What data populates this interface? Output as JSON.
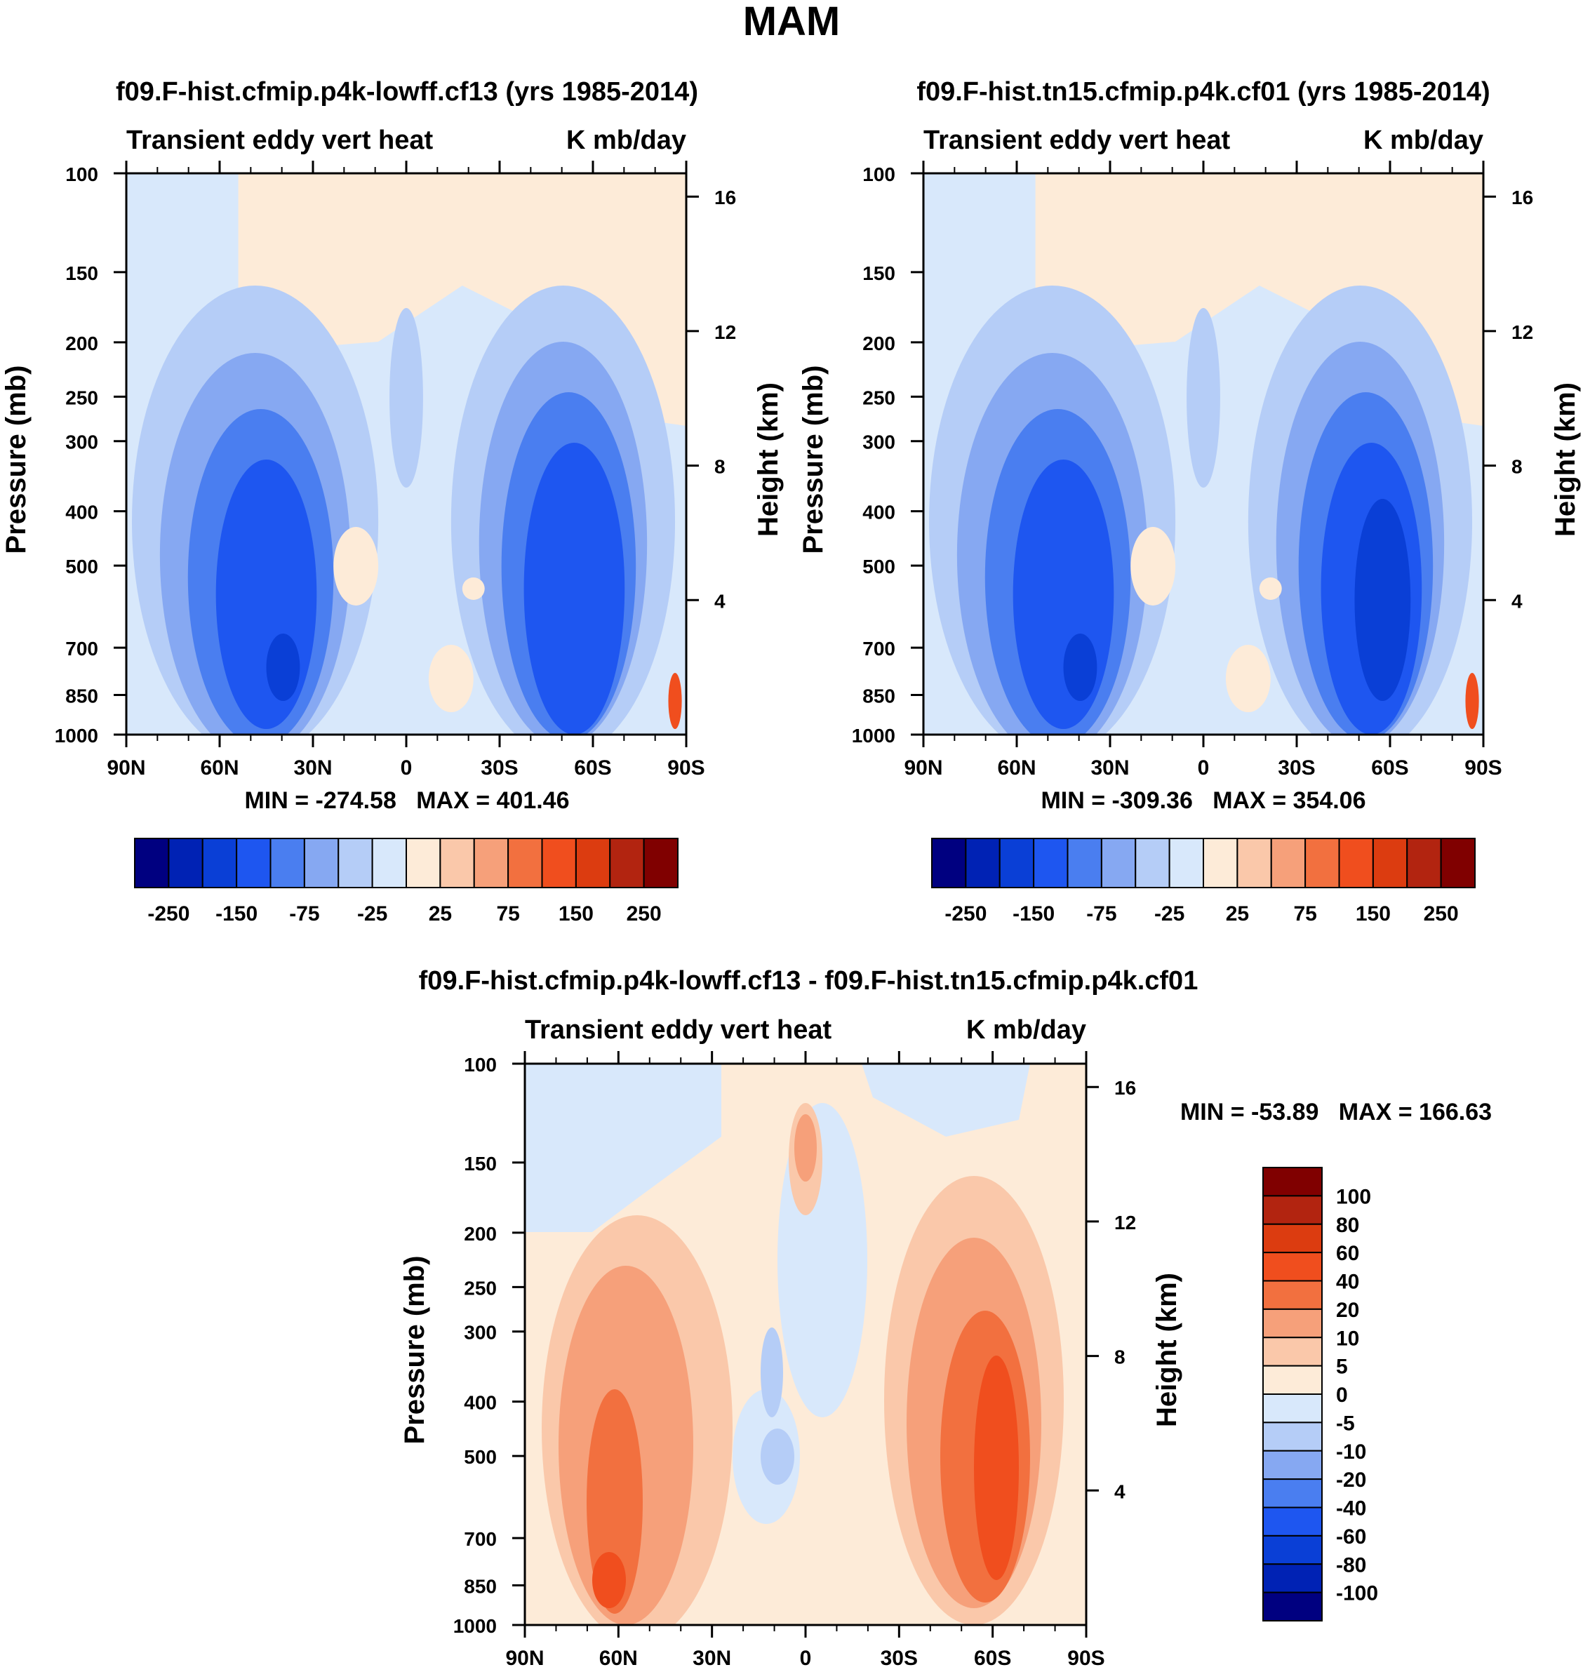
{
  "figure": {
    "title": "MAM"
  },
  "chart_data": [
    {
      "type": "contour",
      "title": "f09.F-hist.cfmip.p4k-lowff.cf13 (yrs 1985-2014)",
      "subtitle_left": "Transient eddy vert heat",
      "subtitle_right": "K mb/day",
      "ylabel": "Pressure (mb)",
      "ylabel_right": "Height (km)",
      "x_ticks": [
        "90N",
        "60N",
        "30N",
        "0",
        "30S",
        "60S",
        "90S"
      ],
      "y_ticks": [
        "100",
        "150",
        "200",
        "250",
        "300",
        "400",
        "500",
        "700",
        "850",
        "1000"
      ],
      "y2_ticks": [
        "16",
        "12",
        "8",
        "4"
      ],
      "min_max": "MIN = -274.58   MAX = 401.46",
      "colorbar_labels": [
        "-250",
        "-150",
        "-75",
        "-25",
        "25",
        "75",
        "150",
        "250"
      ],
      "ylim": [
        1000,
        100
      ],
      "xlim": [
        90,
        -90
      ]
    },
    {
      "type": "contour",
      "title": "f09.F-hist.tn15.cfmip.p4k.cf01 (yrs 1985-2014)",
      "subtitle_left": "Transient eddy vert heat",
      "subtitle_right": "K mb/day",
      "ylabel": "Pressure (mb)",
      "ylabel_right": "Height (km)",
      "x_ticks": [
        "90N",
        "60N",
        "30N",
        "0",
        "30S",
        "60S",
        "90S"
      ],
      "y_ticks": [
        "100",
        "150",
        "200",
        "250",
        "300",
        "400",
        "500",
        "700",
        "850",
        "1000"
      ],
      "y2_ticks": [
        "16",
        "12",
        "8",
        "4"
      ],
      "min_max": "MIN = -309.36   MAX = 354.06",
      "colorbar_labels": [
        "-250",
        "-150",
        "-75",
        "-25",
        "25",
        "75",
        "150",
        "250"
      ],
      "ylim": [
        1000,
        100
      ],
      "xlim": [
        90,
        -90
      ]
    },
    {
      "type": "contour",
      "title": "f09.F-hist.cfmip.p4k-lowff.cf13 - f09.F-hist.tn15.cfmip.p4k.cf01",
      "subtitle_left": "Transient eddy vert heat",
      "subtitle_right": "K mb/day",
      "ylabel": "Pressure (mb)",
      "ylabel_right": "Height (km)",
      "x_ticks": [
        "90N",
        "60N",
        "30N",
        "0",
        "30S",
        "60S",
        "90S"
      ],
      "y_ticks": [
        "100",
        "150",
        "200",
        "250",
        "300",
        "400",
        "500",
        "700",
        "850",
        "1000"
      ],
      "y2_ticks": [
        "16",
        "12",
        "8",
        "4"
      ],
      "min_max": "MIN = -53.89   MAX = 166.63",
      "colorbar_labels": [
        "100",
        "80",
        "60",
        "40",
        "20",
        "10",
        "5",
        "0",
        "-5",
        "-10",
        "-20",
        "-40",
        "-60",
        "-80",
        "-100"
      ],
      "ylim": [
        1000,
        100
      ],
      "xlim": [
        90,
        -90
      ]
    }
  ],
  "colors": {
    "scale": [
      "#000080",
      "#0022b4",
      "#0a3fd6",
      "#1e56f0",
      "#4a7ef0",
      "#86a8f2",
      "#b5cdf7",
      "#d8e8fb",
      "#fdebd8",
      "#fac8aa",
      "#f6a07a",
      "#f2703f",
      "#f04e1e",
      "#dc3c10",
      "#b22410",
      "#800000"
    ]
  }
}
